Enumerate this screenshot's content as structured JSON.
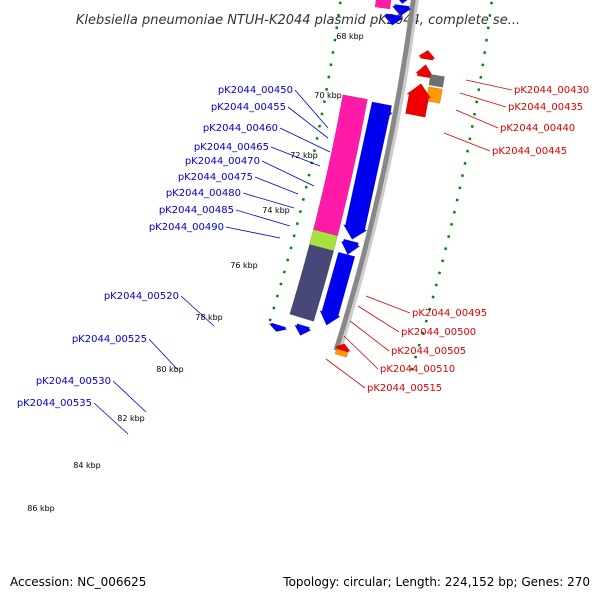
{
  "title": "Klebsiella pneumoniae NTUH-K2044 plasmid pK2044, complete se...",
  "footer": {
    "accession": "Accession: NC_006625",
    "summary": "Topology: circular; Length: 224,152 bp; Genes: 270"
  },
  "colors": {
    "forward_gene": "#0000ee",
    "reverse_gene": "#ee0000",
    "forward_label": "#0000cc",
    "reverse_label": "#dd0000",
    "backbone": "#888888",
    "tick": "#008800",
    "olive": "#b8b070",
    "pink": "#ff1aa8",
    "slate": "#484878",
    "lime": "#a8e040",
    "orange": "#ff9900",
    "grey_gene": "#707070"
  },
  "kbp_ticks": [
    "68 kbp",
    "70 kbp",
    "72 kbp",
    "74 kbp",
    "76 kbp",
    "78 kbp",
    "80 kbp",
    "82 kbp",
    "84 kbp",
    "86 kbp"
  ],
  "forward_labels": [
    "pK2044_00450",
    "pK2044_00455",
    "pK2044_00460",
    "pK2044_00465",
    "pK2044_00470",
    "pK2044_00475",
    "pK2044_00480",
    "pK2044_00485",
    "pK2044_00490",
    "pK2044_00520",
    "pK2044_00525",
    "pK2044_00530",
    "pK2044_00535"
  ],
  "reverse_labels": [
    "pK2044_00430",
    "pK2044_00435",
    "pK2044_00440",
    "pK2044_00445",
    "pK2044_00495",
    "pK2044_00500",
    "pK2044_00505",
    "pK2044_00510",
    "pK2044_00515"
  ]
}
